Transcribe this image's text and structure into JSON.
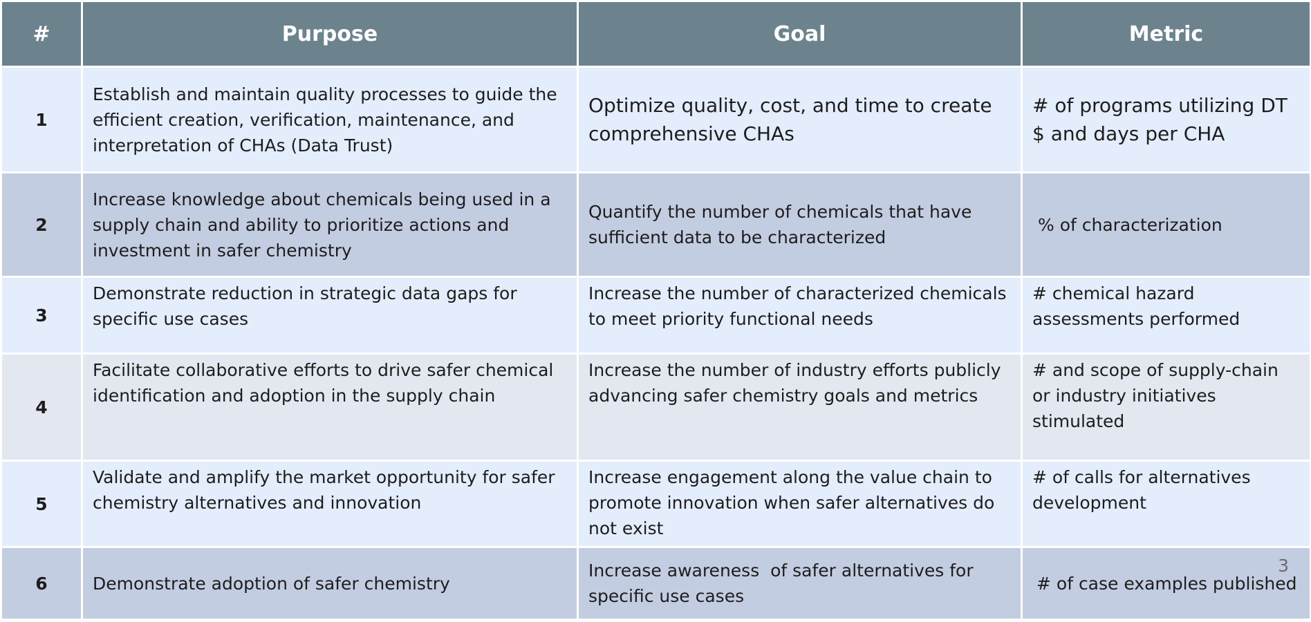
{
  "table": {
    "headers": {
      "num": "#",
      "purpose": "Purpose",
      "goal": "Goal",
      "metric": "Metric"
    },
    "rows": [
      {
        "num": "1",
        "purpose": "Establish and maintain quality processes to guide the efficient creation, verification, maintenance, and interpretation of CHAs (Data Trust)",
        "goal": "Optimize quality, cost, and time to create comprehensive CHAs",
        "metric_lines": [
          "# of programs utilizing DT",
          "$ and days per CHA"
        ]
      },
      {
        "num": "2",
        "purpose": "Increase knowledge about chemicals being used in a supply chain and ability to prioritize actions and investment in safer chemistry",
        "goal": "Quantify the number of chemicals that have sufficient data to be characterized",
        "metric": "% of characterization"
      },
      {
        "num": "3",
        "purpose": "Demonstrate reduction in strategic data gaps for specific use cases",
        "goal": "Increase the number of characterized chemicals to meet priority functional needs",
        "metric": "# chemical hazard assessments performed"
      },
      {
        "num": "4",
        "purpose": "Facilitate collaborative efforts to drive safer chemical identification and adoption in the supply chain",
        "goal": "Increase the number of industry efforts publicly advancing safer chemistry goals and metrics",
        "metric": "# and scope of supply-chain or industry initiatives stimulated"
      },
      {
        "num": "5",
        "purpose": "Validate and amplify the market opportunity for safer chemistry alternatives and innovation",
        "goal": "Increase engagement along the value chain to promote innovation when safer alternatives do not exist",
        "metric": "# of calls for alternatives development"
      },
      {
        "num": "6",
        "purpose": "Demonstrate adoption of safer chemistry",
        "goal": "Increase awareness  of safer alternatives for specific use cases",
        "metric": "# of case examples published"
      }
    ]
  },
  "page_number": "3",
  "colors": {
    "header_bg": "#6c838e",
    "row_light": "#e3edfc",
    "row_dark": "#c3cde1",
    "row_grey": "#e3e7f0"
  }
}
